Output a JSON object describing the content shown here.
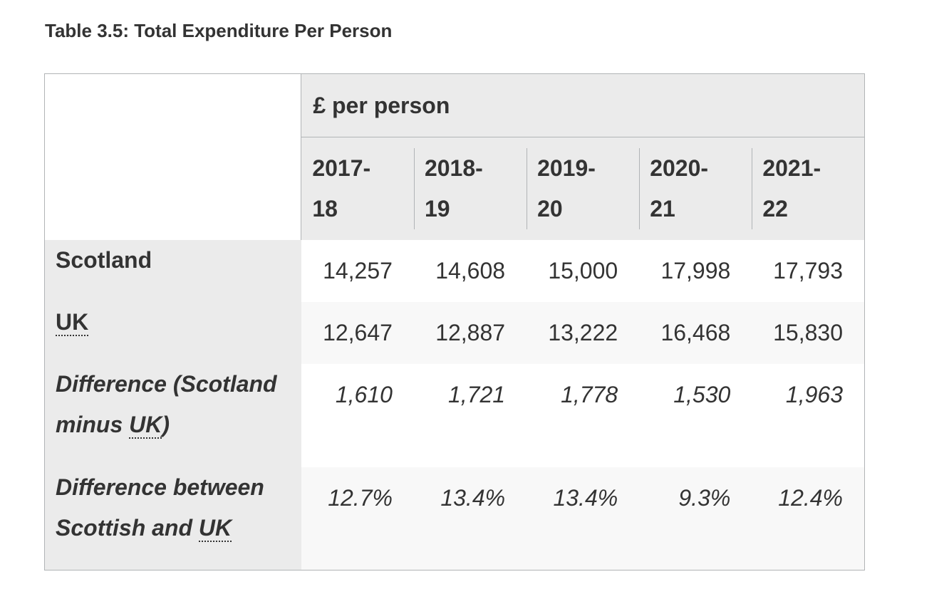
{
  "caption": "Table 3.5: Total Expenditure Per Person",
  "table": {
    "unit_header": "£ per person",
    "years": [
      "2017-18",
      "2018-19",
      "2019-20",
      "2020-21",
      "2021-22"
    ],
    "year_lines": [
      [
        "2017-",
        "18"
      ],
      [
        "2018-",
        "19"
      ],
      [
        "2019-",
        "20"
      ],
      [
        "2020-",
        "21"
      ],
      [
        "2021-",
        "22"
      ]
    ],
    "rows": [
      {
        "label_parts": [
          "Scotland"
        ],
        "values": [
          "14,257",
          "14,608",
          "15,000",
          "17,998",
          "17,793"
        ]
      },
      {
        "label_parts": [
          "",
          "UK",
          ""
        ],
        "values": [
          "12,647",
          "12,887",
          "13,222",
          "16,468",
          "15,830"
        ]
      },
      {
        "label_parts": [
          "Difference (Scotland minus ",
          "UK",
          ")"
        ],
        "values": [
          "1,610",
          "1,721",
          "1,778",
          "1,530",
          "1,963"
        ]
      },
      {
        "label_parts": [
          "Difference between Scottish and ",
          "UK",
          ""
        ],
        "values": [
          "12.7%",
          "13.4%",
          "13.4%",
          "9.3%",
          "12.4%"
        ]
      }
    ]
  },
  "colors": {
    "header_bg": "#ebebeb",
    "border": "#b1b4b6",
    "text": "#333333"
  }
}
